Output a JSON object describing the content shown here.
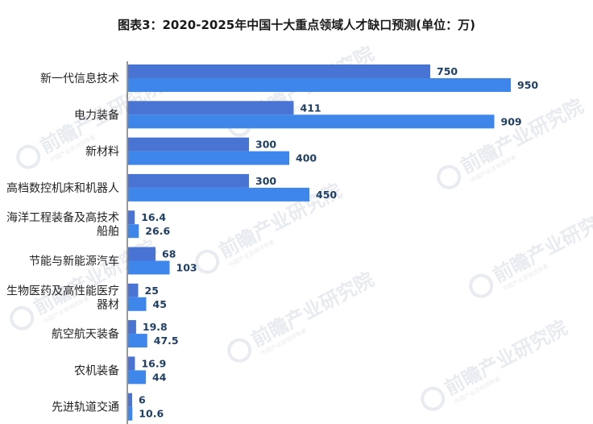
{
  "chart_data": {
    "type": "bar",
    "orientation": "horizontal",
    "title": "图表3：2020-2025年中国十大重点领域人才缺口预测(单位：万)",
    "categories": [
      [
        "新一代信息技术"
      ],
      [
        "电力装备"
      ],
      [
        "新材料"
      ],
      [
        "高档数控机床和机器人"
      ],
      [
        "海洋工程装备及高技术",
        "船舶"
      ],
      [
        "节能与新能源汽车"
      ],
      [
        "生物医药及高性能医疗",
        "器材"
      ],
      [
        "航空航天装备"
      ],
      [
        "农机装备"
      ],
      [
        "先进轨道交通"
      ]
    ],
    "series": [
      {
        "values": [
          750,
          411,
          300,
          300,
          16.4,
          68,
          25,
          19.8,
          16.9,
          6
        ]
      },
      {
        "values": [
          950,
          909,
          400,
          450,
          26.6,
          103,
          45,
          47.5,
          44,
          10.6
        ]
      }
    ],
    "value_labels": [
      [
        "750",
        "411",
        "300",
        "300",
        "16.4",
        "68",
        "25",
        "19.8",
        "16.9",
        "6"
      ],
      [
        "950",
        "909",
        "400",
        "450",
        "26.6",
        "103",
        "45",
        "47.5",
        "44",
        "10.6"
      ]
    ],
    "xlim": [
      0,
      1000
    ],
    "grid": false,
    "legend": "none"
  },
  "colors": {
    "series_1": "#4a74d4",
    "series_2": "#3f86ea",
    "axis": "#333333",
    "value_text": "#1f3f66",
    "watermark": "#e8ebef"
  },
  "watermark": {
    "logo_text": "前瞻产业研究院",
    "sub_text": "中国产业咨询领导者"
  }
}
